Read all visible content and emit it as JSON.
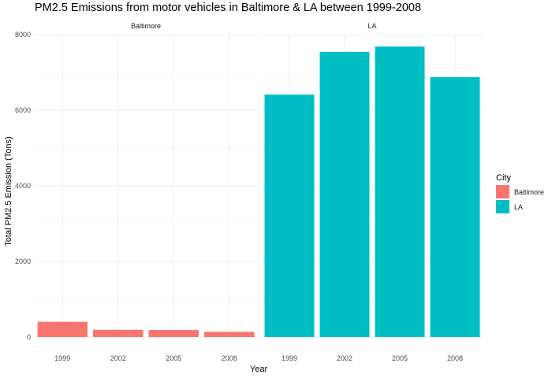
{
  "chart_data": {
    "type": "bar",
    "title": "PM2.5 Emissions from motor vehicles in Baltimore & LA between 1999-2008",
    "xlabel": "Year",
    "ylabel": "Total PM2.5 Emission (Tons)",
    "ylim": [
      0,
      8000
    ],
    "yticks": [
      "0",
      "2000",
      "4000",
      "6000",
      "8000"
    ],
    "categories": [
      "1999",
      "2002",
      "2005",
      "2008"
    ],
    "facet_variable": "City",
    "grid": true,
    "legend_position": "right",
    "legend": {
      "title": "City",
      "entries": [
        {
          "label": "Baltimore",
          "color": "#F8766D"
        },
        {
          "label": "LA",
          "color": "#00BFC4"
        }
      ]
    },
    "series": [
      {
        "name": "Baltimore",
        "color": "#F8766D",
        "values": [
          404,
          192,
          186,
          139
        ]
      },
      {
        "name": "LA",
        "color": "#00BFC4",
        "values": [
          6413,
          7545,
          7686,
          6878
        ]
      }
    ]
  }
}
